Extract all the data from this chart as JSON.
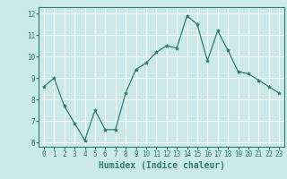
{
  "x": [
    0,
    1,
    2,
    3,
    4,
    5,
    6,
    7,
    8,
    9,
    10,
    11,
    12,
    13,
    14,
    15,
    16,
    17,
    18,
    19,
    20,
    21,
    22,
    23
  ],
  "y": [
    8.6,
    9.0,
    7.7,
    6.9,
    6.1,
    7.5,
    6.6,
    6.6,
    8.3,
    9.4,
    9.7,
    10.2,
    10.5,
    10.4,
    11.9,
    11.5,
    9.8,
    11.2,
    10.3,
    9.3,
    9.2,
    8.9,
    8.6,
    8.3
  ],
  "line_color": "#2e7d6e",
  "marker": "*",
  "marker_size": 3,
  "bg_color": "#cce9e9",
  "grid_color": "#ffffff",
  "axis_color": "#2e7d6e",
  "xlabel": "Humidex (Indice chaleur)",
  "xlim": [
    -0.5,
    23.5
  ],
  "ylim": [
    5.8,
    12.3
  ],
  "yticks": [
    6,
    7,
    8,
    9,
    10,
    11,
    12
  ],
  "xticks": [
    0,
    1,
    2,
    3,
    4,
    5,
    6,
    7,
    8,
    9,
    10,
    11,
    12,
    13,
    14,
    15,
    16,
    17,
    18,
    19,
    20,
    21,
    22,
    23
  ],
  "tick_label_fontsize": 5.5,
  "xlabel_fontsize": 7
}
